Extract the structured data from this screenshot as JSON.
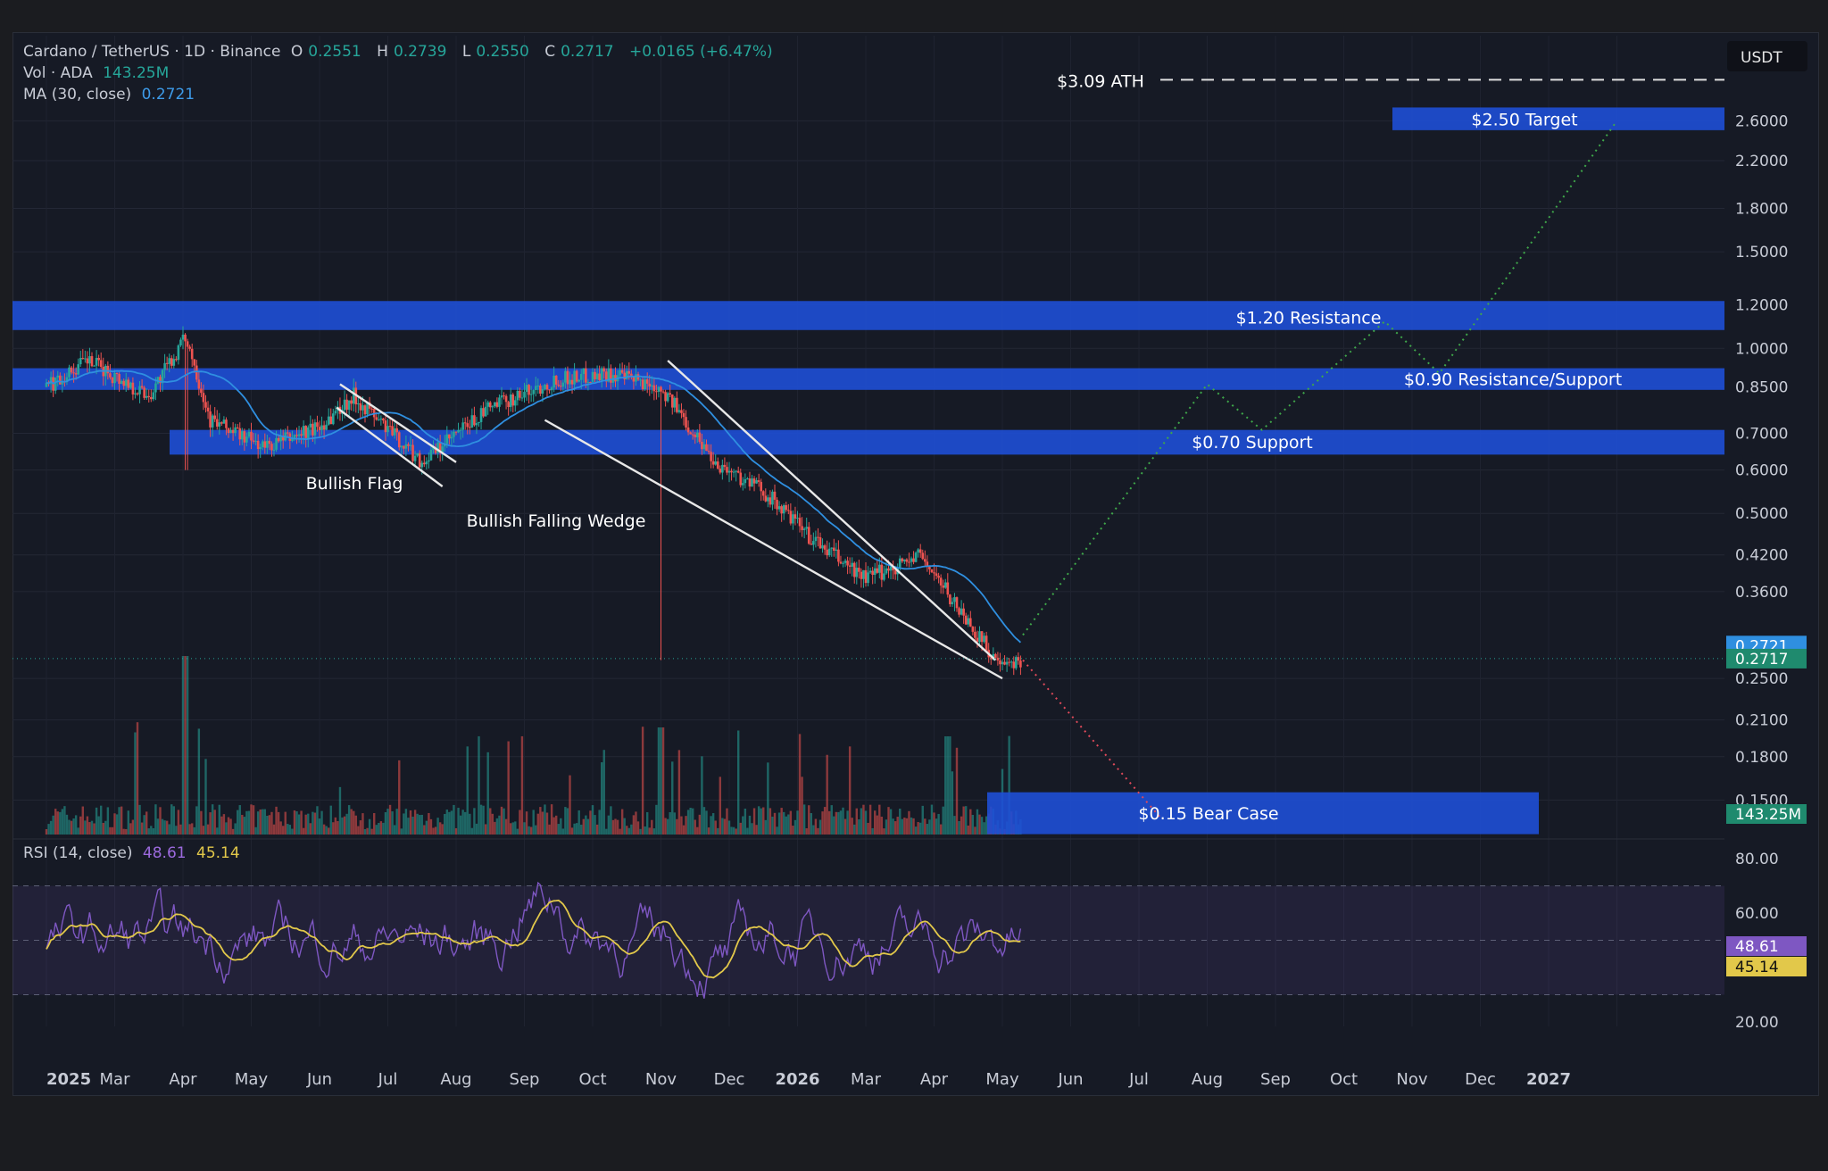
{
  "header": {
    "symbol": "Cardano / TetherUS · 1D · Binance",
    "o_label": "O",
    "o": "0.2551",
    "h_label": "H",
    "h": "0.2739",
    "l_label": "L",
    "l": "0.2550",
    "c_label": "C",
    "c": "0.2717",
    "change": "+0.0165 (+6.47%)",
    "vol_label": "Vol · ADA",
    "vol": "143.25M",
    "ma_label": "MA (30, close)",
    "ma": "0.2721",
    "rsi_label": "RSI (14, close)",
    "rsi": "48.61",
    "rsi_ma": "45.14"
  },
  "colors": {
    "background": "#161a25",
    "zone": "#1e4fd6",
    "up": "#26a69a",
    "down": "#ef5350",
    "ma": "#2f8fe0",
    "rsi": "#7e57c2",
    "rsi_ma": "#e2c84a"
  },
  "chart_data": {
    "type": "candlestick",
    "y_scale": "log",
    "y_unit": "USDT",
    "y_ticks": [
      "2.6000",
      "2.2000",
      "1.8000",
      "1.5000",
      "1.2000",
      "1.0000",
      "0.8500",
      "0.7000",
      "0.6000",
      "0.5000",
      "0.4200",
      "0.3600",
      "0.2500",
      "0.2100",
      "0.1800",
      "0.1500"
    ],
    "x_ticks": [
      "2025",
      "Mar",
      "Apr",
      "May",
      "Jun",
      "Jul",
      "Aug",
      "Sep",
      "Oct",
      "Nov",
      "Dec",
      "2026",
      "Mar",
      "Apr",
      "May",
      "Jun",
      "Jul",
      "Aug",
      "Sep",
      "Oct",
      "Nov",
      "Dec",
      "2027"
    ],
    "price_path": [
      {
        "month": 0,
        "price": 0.85
      },
      {
        "month": 0.6,
        "price": 0.95
      },
      {
        "month": 1.5,
        "price": 0.82
      },
      {
        "month": 2.05,
        "price": 1.05
      },
      {
        "month": 2.4,
        "price": 0.74
      },
      {
        "month": 3.2,
        "price": 0.66
      },
      {
        "month": 4.0,
        "price": 0.72
      },
      {
        "month": 4.5,
        "price": 0.82
      },
      {
        "month": 5.5,
        "price": 0.62
      },
      {
        "month": 6.5,
        "price": 0.78
      },
      {
        "month": 7.5,
        "price": 0.88
      },
      {
        "month": 8.2,
        "price": 0.9
      },
      {
        "month": 9.0,
        "price": 0.85
      },
      {
        "month": 9.8,
        "price": 0.62
      },
      {
        "month": 10.5,
        "price": 0.55
      },
      {
        "month": 11.2,
        "price": 0.45
      },
      {
        "month": 12.0,
        "price": 0.38
      },
      {
        "month": 12.8,
        "price": 0.42
      },
      {
        "month": 13.4,
        "price": 0.33
      },
      {
        "month": 14.0,
        "price": 0.26
      },
      {
        "month": 14.3,
        "price": 0.2717
      }
    ],
    "ma_last": 0.2721,
    "last_price": 0.2717,
    "volume_last": "143.25M",
    "rsi": {
      "last": 48.61,
      "ma_last": 45.14,
      "ticks": [
        "80.00",
        "60.00",
        "20.00"
      ],
      "band": [
        30,
        70
      ]
    },
    "zones": [
      {
        "label": "$2.50 Target",
        "price_low": 2.5,
        "price_high": 2.75
      },
      {
        "label": "$1.20 Resistance",
        "price_low": 1.08,
        "price_high": 1.22
      },
      {
        "label": "$0.90 Resistance/Support",
        "price_low": 0.84,
        "price_high": 0.92
      },
      {
        "label": "$0.70 Support",
        "price_low": 0.64,
        "price_high": 0.71
      },
      {
        "label": "$0.15 Bear Case",
        "price_low": 0.13,
        "price_high": 0.155
      }
    ],
    "ath": {
      "label": "$3.09 ATH",
      "price": 3.09
    },
    "patterns": [
      {
        "label": "Bullish Flag"
      },
      {
        "label": "Bullish Falling Wedge"
      }
    ],
    "projections": [
      {
        "type": "bullish",
        "path": [
          {
            "month": 14.3,
            "price": 0.3
          },
          {
            "month": 17.0,
            "price": 0.86
          },
          {
            "month": 17.8,
            "price": 0.71
          },
          {
            "month": 19.6,
            "price": 1.12
          },
          {
            "month": 20.4,
            "price": 0.9
          },
          {
            "month": 23.0,
            "price": 2.6
          }
        ]
      },
      {
        "type": "bearish",
        "path": [
          {
            "month": 14.3,
            "price": 0.27
          },
          {
            "month": 16.3,
            "price": 0.14
          }
        ]
      }
    ]
  },
  "axis": {
    "currency": "USDT",
    "last_ma_tag": "0.2721",
    "last_price_tag": "0.2717",
    "volume_tag": "143.25M",
    "rsi_tag": "48.61",
    "rsi_ma_tag": "45.14"
  }
}
